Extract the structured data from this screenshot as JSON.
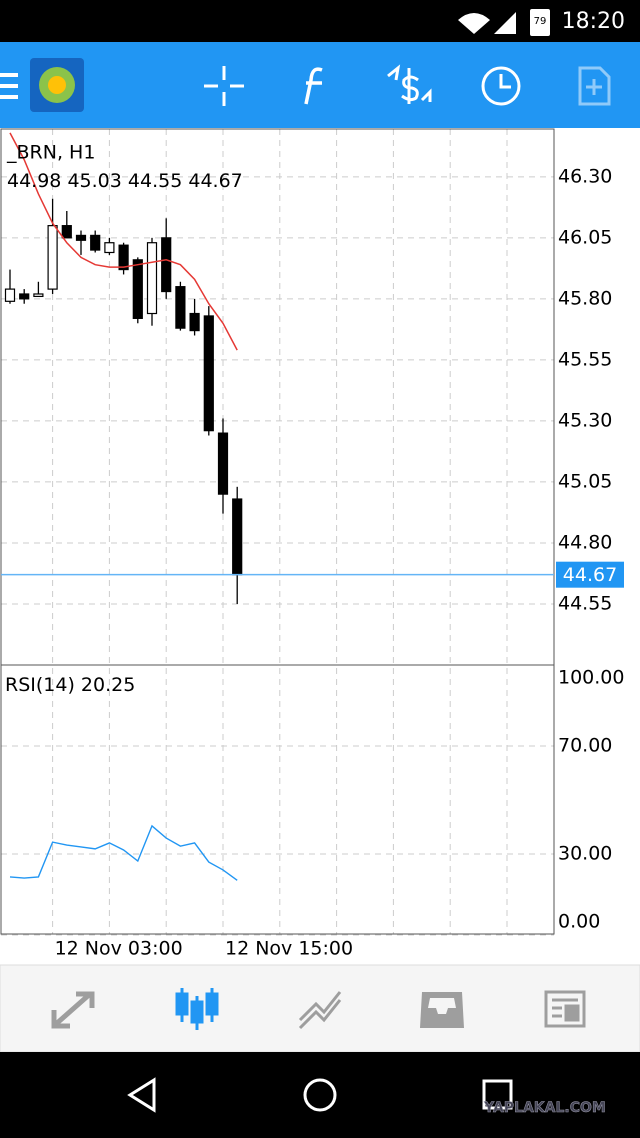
{
  "status_bar": {
    "battery": "79",
    "time": "18:20"
  },
  "chart_data": [
    {
      "type": "candlestick",
      "title": "_BRN, H1",
      "categories": [
        null,
        null,
        null,
        "12 Nov 03:00",
        null,
        null,
        null,
        null,
        null,
        null,
        null,
        null,
        null,
        null,
        null,
        "12 Nov 15:00",
        null
      ],
      "open": [
        45.79,
        45.82,
        45.81,
        45.84,
        46.1,
        46.06,
        46.06,
        45.99,
        46.02,
        45.96,
        45.74,
        46.05,
        45.85,
        45.74,
        45.73,
        45.25,
        44.98
      ],
      "high": [
        45.92,
        45.84,
        45.87,
        46.21,
        46.16,
        46.08,
        46.08,
        46.05,
        46.03,
        45.97,
        46.05,
        46.13,
        45.87,
        45.8,
        45.77,
        45.31,
        45.03
      ],
      "low": [
        45.78,
        45.78,
        45.81,
        45.82,
        46.05,
        45.98,
        45.99,
        45.98,
        45.9,
        45.7,
        45.69,
        45.8,
        45.67,
        45.65,
        45.24,
        44.92,
        44.55
      ],
      "close": [
        45.84,
        45.8,
        45.82,
        46.1,
        46.05,
        46.04,
        46.0,
        46.03,
        45.92,
        45.72,
        46.03,
        45.83,
        45.68,
        45.67,
        45.26,
        45.0,
        44.67
      ],
      "ma": {
        "color": "#e53935",
        "values": [
          46.48,
          46.37,
          46.23,
          46.11,
          46.03,
          45.97,
          45.94,
          45.93,
          45.93,
          45.94,
          45.95,
          45.96,
          45.94,
          45.88,
          45.78,
          45.7,
          45.59
        ]
      },
      "up_color": "#ffffff",
      "down_color": "#000000",
      "price_line_color": "#64b5f6",
      "ylim": [
        44.3,
        46.5
      ],
      "yticks": [
        {
          "value": 46.3,
          "label": "46.30"
        },
        {
          "value": 46.05,
          "label": "46.05"
        },
        {
          "value": 45.8,
          "label": "45.80"
        },
        {
          "value": 45.55,
          "label": "45.55"
        },
        {
          "value": 45.3,
          "label": "45.30"
        },
        {
          "value": 45.05,
          "label": "45.05"
        },
        {
          "value": 44.8,
          "label": "44.80"
        },
        {
          "value": 44.55,
          "label": "44.55"
        }
      ],
      "grid": true
    },
    {
      "type": "line",
      "title": "RSI(14)",
      "values": [
        21.5,
        21.1,
        21.5,
        34.4,
        33.3,
        32.6,
        31.9,
        34.1,
        31.5,
        27.4,
        40.4,
        35.9,
        32.9,
        34.1,
        27.0,
        24.1,
        20.25
      ],
      "color": "#2196f3",
      "ylim": [
        0,
        100
      ],
      "yticks": [
        {
          "value": 100,
          "label": "100.00"
        },
        {
          "value": 70,
          "label": "70.00"
        },
        {
          "value": 30,
          "label": "30.00"
        },
        {
          "value": 0,
          "label": "0.00"
        }
      ],
      "grid": true
    }
  ],
  "watermark": "YAPLAKAL.COM"
}
